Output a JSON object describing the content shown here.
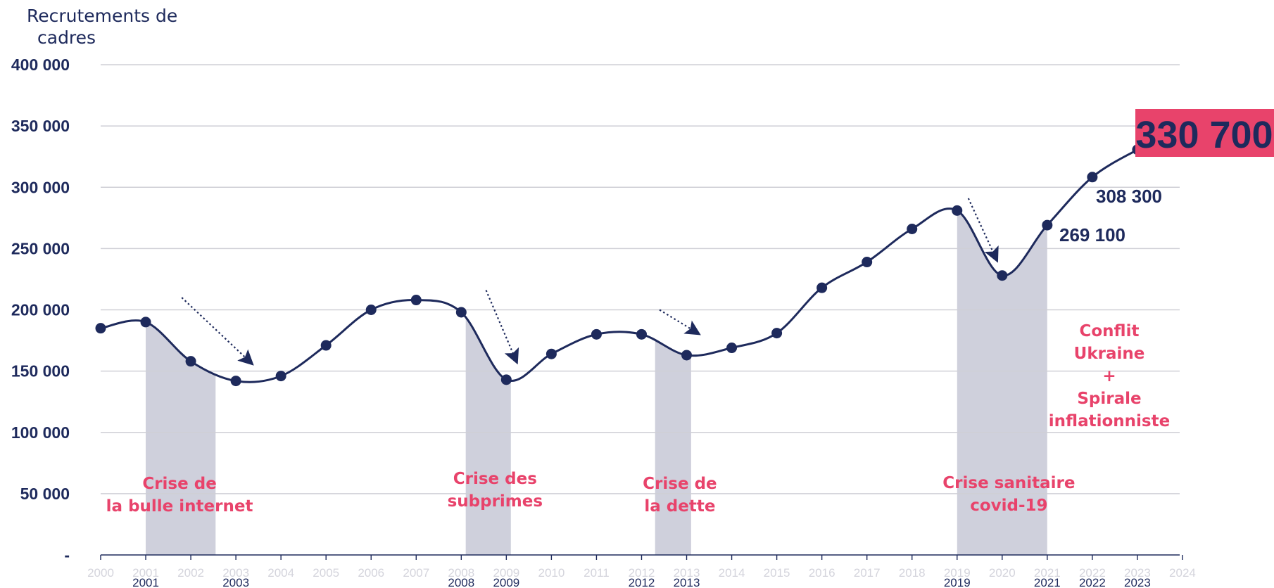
{
  "chart_data": {
    "type": "line",
    "ylabel": "Recrutements de cadres",
    "ylabel_lines": [
      "Recrutements de",
      "cadres"
    ],
    "ylim": [
      0,
      400000
    ],
    "y_ticks": [
      {
        "value": 0,
        "label": "-"
      },
      {
        "value": 50000,
        "label": "50 000"
      },
      {
        "value": 100000,
        "label": "100 000"
      },
      {
        "value": 150000,
        "label": "150 000"
      },
      {
        "value": 200000,
        "label": "200 000"
      },
      {
        "value": 250000,
        "label": "250 000"
      },
      {
        "value": 300000,
        "label": "300 000"
      },
      {
        "value": 350000,
        "label": "350 000"
      },
      {
        "value": 400000,
        "label": "400 000"
      }
    ],
    "x_ticks": [
      "2000",
      "2001",
      "2002",
      "2003",
      "2004",
      "2005",
      "2006",
      "2007",
      "2008",
      "2009",
      "2010",
      "2011",
      "2012",
      "2013",
      "2014",
      "2015",
      "2016",
      "2017",
      "2018",
      "2019",
      "2020",
      "2021",
      "2022",
      "2023",
      "2024"
    ],
    "x_highlight": [
      "2001",
      "2003",
      "2008",
      "2009",
      "2012",
      "2013",
      "2019",
      "2021",
      "2022",
      "2023"
    ],
    "grid": true,
    "line_color": "#1e2a5c",
    "shade_color": "#cfd0dc",
    "accent_color": "#e8436b",
    "series": [
      {
        "x": [
          2000,
          2001,
          2002,
          2003,
          2004,
          2005,
          2006,
          2007,
          2008,
          2009,
          2010,
          2011,
          2012,
          2013,
          2014,
          2015,
          2016,
          2017,
          2018,
          2019,
          2020,
          2021,
          2022,
          2023
        ],
        "values": [
          185000,
          190000,
          158000,
          142000,
          146000,
          171000,
          200000,
          208000,
          198000,
          143000,
          164000,
          180000,
          180000,
          163000,
          169000,
          181000,
          218000,
          239000,
          266000,
          281000,
          228000,
          269100,
          308300,
          330700
        ]
      }
    ],
    "crises": [
      {
        "start": 2001,
        "end": 2002.55,
        "label_lines": [
          "Crise de",
          "la bulle internet"
        ],
        "label_x": 2001.75
      },
      {
        "start": 2008.1,
        "end": 2009.1,
        "label_lines": [
          "Crise des",
          "subprimes"
        ],
        "label_x": 2008.75
      },
      {
        "start": 2012.3,
        "end": 2013.1,
        "label_lines": [
          "Crise de",
          "la dette"
        ],
        "label_x": 2012.85
      },
      {
        "start": 2019,
        "end": 2021,
        "label_lines": [
          "Crise sanitaire",
          "covid-19"
        ],
        "label_x": 2020.15
      }
    ],
    "annotations": {
      "ukraine_lines": [
        "Conflit",
        "Ukraine",
        "+",
        "Spirale",
        "inflationniste"
      ],
      "label_2021": "269 100",
      "label_2022": "308 300",
      "label_2023": "330 700"
    },
    "arrows": [
      {
        "from": [
          2001.8,
          210000
        ],
        "to": [
          2003.3,
          158000
        ]
      },
      {
        "from": [
          2008.55,
          216000
        ],
        "to": [
          2009.2,
          160000
        ]
      },
      {
        "from": [
          2012.4,
          200000
        ],
        "to": [
          2013.2,
          182000
        ]
      },
      {
        "from": [
          2019.25,
          291000
        ],
        "to": [
          2019.85,
          243000
        ]
      }
    ]
  }
}
